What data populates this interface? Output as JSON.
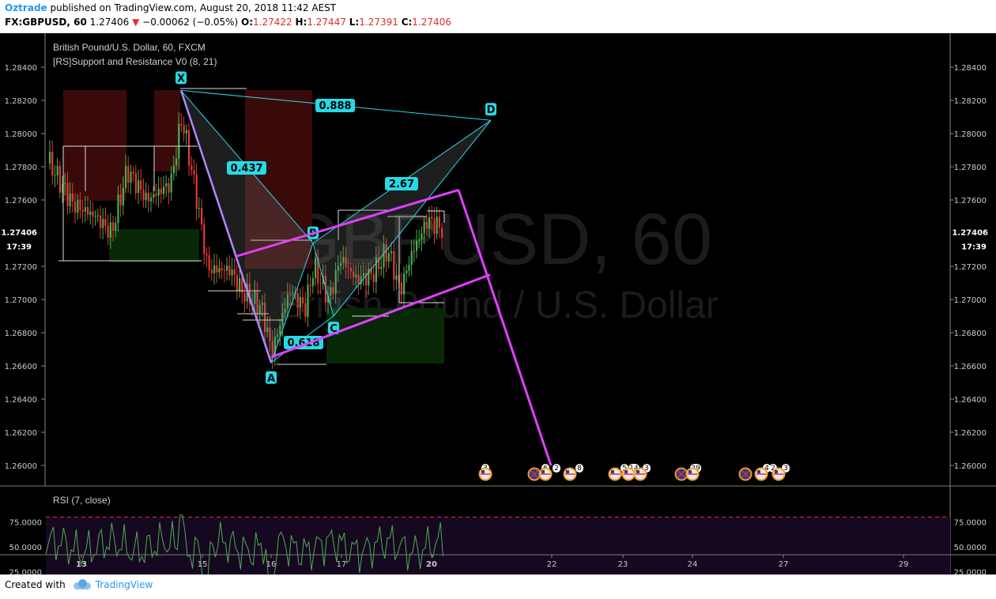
{
  "header": {
    "author": "Oztrade",
    "published_text": "published on TradingView.com, August 20, 2018 11:42 AEST",
    "symbol": "FX:GBPUSD, 60",
    "last": "1.27406",
    "change_arrow": "▼",
    "change": "−0.00062 (−0.05%)",
    "open_label": "O:",
    "open": "1.27422",
    "high_label": "H:",
    "high": "1.27447",
    "low_label": "L:",
    "low": "1.27391",
    "close_label": "C:",
    "close": "1.27406"
  },
  "footer": {
    "created_with": "Created with",
    "brand": "TradingView"
  },
  "chart_data": {
    "type": "candlestick",
    "title": "British Pound/U.S. Dollar, 60, FXCM",
    "indicator": "[RS]Support and Resistance V0 (8, 21)",
    "watermark": {
      "symbol": "GBPUSD, 60",
      "name": "British Pound / U.S. Dollar"
    },
    "colors": {
      "background": "#000000",
      "up": "#4caf50",
      "down": "#e53935",
      "pattern": "#26d9e6",
      "channel": "#e040fb",
      "rsi_line": "#4caf50",
      "rsi_band": "#e53935"
    },
    "y_axis": {
      "min": 1.259,
      "max": 1.2855,
      "ticks": [
        "1.28400",
        "1.28200",
        "1.28000",
        "1.27800",
        "1.27600",
        "1.27400",
        "1.27200",
        "1.27000",
        "1.26800",
        "1.26600",
        "1.26400",
        "1.26200",
        "1.26000"
      ]
    },
    "x_axis": {
      "ticks": [
        "13",
        "15",
        "16",
        "17",
        "20",
        "22",
        "23",
        "24",
        "27",
        "29"
      ]
    },
    "last_price": {
      "value": "1.27406",
      "countdown": "17:39"
    },
    "harmonic_pattern": {
      "points": [
        {
          "label": "X",
          "price": 1.2826
        },
        {
          "label": "A",
          "price": 1.2662
        },
        {
          "label": "B",
          "price": 1.2734
        },
        {
          "label": "C",
          "price": 1.269
        },
        {
          "label": "D",
          "price": 1.2808
        }
      ],
      "ratios": [
        "0.888",
        "0.437",
        "2.67",
        "0.618"
      ]
    },
    "channel_projection": {
      "upper_end": 1.2766,
      "lower_end": 1.2715,
      "target": 1.26
    },
    "event_badges": [
      "3",
      "6",
      "2",
      "8",
      "5",
      "14",
      "3",
      "29",
      "4",
      "2",
      "3"
    ],
    "rsi": {
      "label": "RSI (7, close)",
      "levels": [
        80,
        20
      ],
      "ticks": [
        "75.0000",
        "50.0000",
        "25.0000"
      ],
      "ylim": [
        10,
        90
      ]
    }
  }
}
